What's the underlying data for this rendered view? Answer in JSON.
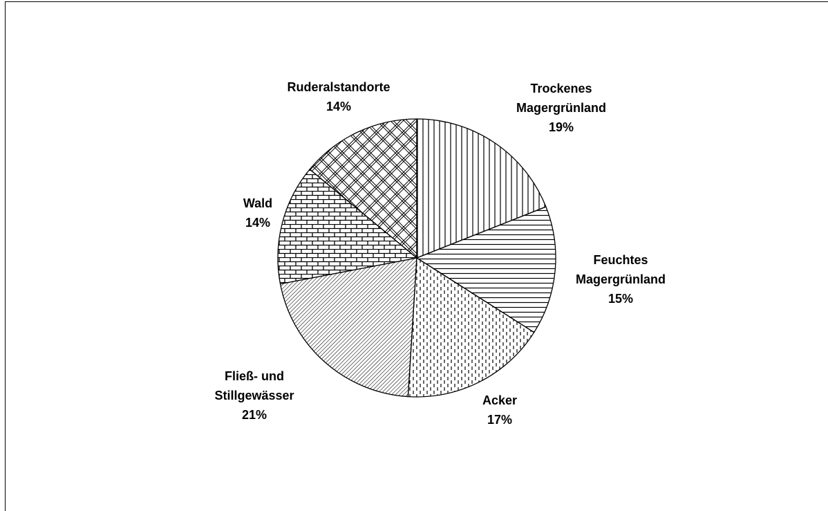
{
  "chart_data": {
    "type": "pie",
    "categories": [
      "Trockenes Magergrünland",
      "Feuchtes Magergrünland",
      "Acker",
      "Fließ- und Stillgewässer",
      "Wald",
      "Ruderalstandorte"
    ],
    "values": [
      19,
      15,
      17,
      21,
      14,
      14
    ],
    "value_labels": [
      "19%",
      "15%",
      "17%",
      "21%",
      "14%",
      "14%"
    ]
  }
}
